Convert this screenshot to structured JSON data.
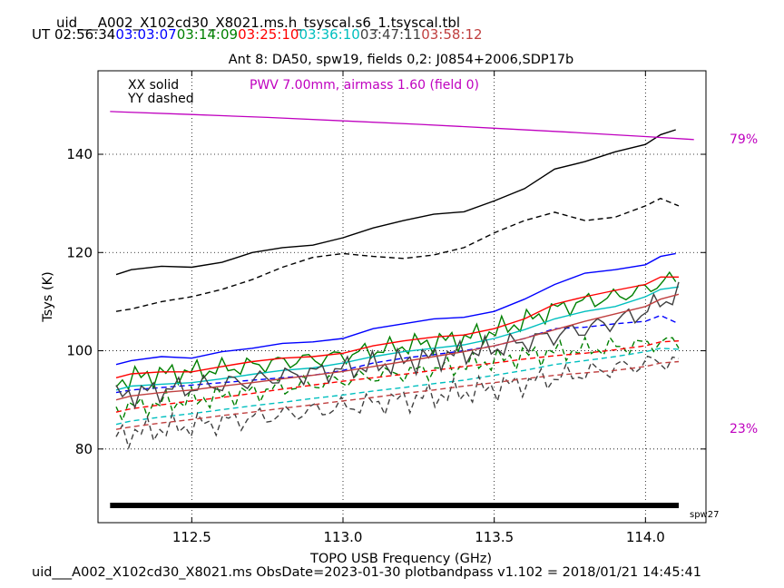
{
  "header": {
    "table_name": "uid___A002_X102cd30_X8021.ms.h_tsyscal.s6_1.tsyscal.tbl",
    "ut_prefix": "UT",
    "times": [
      {
        "label": "02:56:34",
        "color": "#000000"
      },
      {
        "label": "03:03:07",
        "color": "#0000ff"
      },
      {
        "label": "03:14:09",
        "color": "#008000"
      },
      {
        "label": "03:25:10",
        "color": "#ff0000"
      },
      {
        "label": "03:36:10",
        "color": "#00bfbf"
      },
      {
        "label": "03:47:11",
        "color": "#404040"
      },
      {
        "label": "03:58:12",
        "color": "#c04040"
      }
    ]
  },
  "footer": {
    "text": "uid___A002_X102cd30_X8021.ms  ObsDate=2023-01-30   plotbandpass v1.102 = 2018/01/21 14:45:41"
  },
  "chart_data": {
    "type": "line",
    "title": "Ant 8: DA50,  spw19,  fields 0,2: J0854+2006,SDP17b",
    "xlabel": "TOPO USB Frequency (GHz)",
    "ylabel": "Tsys (K)",
    "xlim": [
      112.19,
      114.2
    ],
    "ylim": [
      65,
      157
    ],
    "xticks": [
      112.5,
      113.0,
      113.5,
      114.0
    ],
    "xtick_labels": [
      "112.5",
      "113.0",
      "113.5",
      "114.0"
    ],
    "yticks": [
      80,
      100,
      120,
      140
    ],
    "ytick_labels": [
      "80",
      "100",
      "120",
      "140"
    ],
    "grid": true,
    "legend_notes": [
      "XX solid",
      "YY dashed"
    ],
    "pwv_annotation": {
      "text": "PWV 7.00mm, airmass 1.60 (field 0)",
      "color": "#bf00bf"
    },
    "atm_transmission": {
      "color": "#bf00bf",
      "scale_top_label": "79%",
      "scale_bottom_label": "23%",
      "x": [
        112.23,
        112.5,
        112.75,
        113.0,
        113.25,
        113.5,
        113.75,
        114.0,
        114.16
      ],
      "y": [
        148.7,
        148.1,
        147.5,
        146.8,
        146.1,
        145.3,
        144.5,
        143.6,
        143.0
      ]
    },
    "spw_bar": {
      "label": "spw27",
      "x_range": [
        112.23,
        114.11
      ],
      "y": 68.5,
      "color": "#000000"
    },
    "series": [
      {
        "color": "#000000",
        "dash": false,
        "noise": 0,
        "x": [
          112.25,
          112.3,
          112.4,
          112.5,
          112.6,
          112.7,
          112.8,
          112.9,
          113.0,
          113.1,
          113.2,
          113.3,
          113.4,
          113.5,
          113.6,
          113.7,
          113.8,
          113.9,
          114.0,
          114.05,
          114.1
        ],
        "y": [
          115.5,
          116.5,
          117.2,
          117.0,
          118.0,
          120.0,
          121.0,
          121.5,
          123.0,
          125.0,
          126.5,
          127.8,
          128.3,
          130.5,
          133.0,
          137.0,
          138.5,
          140.5,
          142.0,
          144.0,
          145.0
        ]
      },
      {
        "color": "#000000",
        "dash": true,
        "noise": 0,
        "x": [
          112.25,
          112.3,
          112.4,
          112.5,
          112.6,
          112.7,
          112.8,
          112.9,
          113.0,
          113.1,
          113.2,
          113.3,
          113.4,
          113.5,
          113.6,
          113.7,
          113.8,
          113.9,
          114.0,
          114.05,
          114.11
        ],
        "y": [
          108.0,
          108.5,
          110.0,
          111.0,
          112.5,
          114.5,
          117.0,
          119.0,
          119.8,
          119.2,
          118.8,
          119.5,
          121.0,
          124.0,
          126.5,
          128.2,
          126.5,
          127.2,
          129.5,
          131.0,
          129.5
        ]
      },
      {
        "color": "#0000ff",
        "dash": false,
        "noise": 0,
        "x": [
          112.25,
          112.3,
          112.4,
          112.5,
          112.6,
          112.7,
          112.8,
          112.9,
          113.0,
          113.1,
          113.2,
          113.3,
          113.4,
          113.5,
          113.6,
          113.7,
          113.8,
          113.9,
          114.0,
          114.05,
          114.1
        ],
        "y": [
          97.2,
          98.0,
          98.8,
          98.5,
          99.8,
          100.5,
          101.5,
          101.8,
          102.5,
          104.5,
          105.5,
          106.5,
          106.8,
          108.0,
          110.5,
          113.5,
          115.8,
          116.5,
          117.5,
          119.2,
          119.8
        ]
      },
      {
        "color": "#0000ff",
        "dash": true,
        "noise": 0,
        "x": [
          112.25,
          112.3,
          112.4,
          112.5,
          112.6,
          112.7,
          112.8,
          112.9,
          113.0,
          113.1,
          113.2,
          113.3,
          113.4,
          113.5,
          113.6,
          113.7,
          113.8,
          113.9,
          114.0,
          114.05,
          114.11
        ],
        "y": [
          91.5,
          92.0,
          92.5,
          93.0,
          93.5,
          94.0,
          94.5,
          95.0,
          96.0,
          97.5,
          98.5,
          99.2,
          100.0,
          101.0,
          102.5,
          104.5,
          104.8,
          105.5,
          106.0,
          107.2,
          105.5
        ]
      },
      {
        "color": "#008000",
        "dash": false,
        "noise": 1.2,
        "x": [
          112.25,
          112.3,
          112.4,
          112.5,
          112.6,
          112.7,
          112.8,
          112.9,
          113.0,
          113.1,
          113.2,
          113.3,
          113.4,
          113.5,
          113.6,
          113.7,
          113.8,
          113.9,
          114.0,
          114.05,
          114.1
        ],
        "y": [
          93.5,
          94.5,
          95.3,
          95.8,
          96.3,
          97.0,
          97.8,
          98.3,
          99.0,
          100.0,
          101.0,
          101.8,
          102.5,
          104.0,
          106.0,
          108.5,
          110.0,
          111.0,
          112.5,
          114.0,
          114.5
        ]
      },
      {
        "color": "#008000",
        "dash": true,
        "noise": 1.2,
        "x": [
          112.25,
          112.3,
          112.4,
          112.5,
          112.6,
          112.7,
          112.8,
          112.9,
          113.0,
          113.1,
          113.2,
          113.3,
          113.4,
          113.5,
          113.6,
          113.7,
          113.8,
          113.9,
          114.0,
          114.05,
          114.11
        ],
        "y": [
          88.0,
          88.5,
          89.3,
          90.0,
          90.8,
          91.5,
          92.5,
          93.2,
          94.0,
          94.8,
          95.5,
          96.2,
          97.0,
          98.0,
          99.0,
          99.8,
          100.3,
          100.8,
          101.3,
          101.8,
          101.5
        ]
      },
      {
        "color": "#ff0000",
        "dash": false,
        "noise": 0,
        "x": [
          112.25,
          112.3,
          112.4,
          112.5,
          112.6,
          112.7,
          112.8,
          112.9,
          113.0,
          113.1,
          113.2,
          113.3,
          113.4,
          113.5,
          113.6,
          113.7,
          113.8,
          113.9,
          114.0,
          114.05,
          114.11
        ],
        "y": [
          94.5,
          95.3,
          95.7,
          95.7,
          96.8,
          97.8,
          98.5,
          98.8,
          99.5,
          101.0,
          102.0,
          102.8,
          103.2,
          104.5,
          106.5,
          109.5,
          111.0,
          112.3,
          113.5,
          115.0,
          115.0
        ]
      },
      {
        "color": "#ff0000",
        "dash": true,
        "noise": 0,
        "x": [
          112.25,
          112.3,
          112.4,
          112.5,
          112.6,
          112.7,
          112.8,
          112.9,
          113.0,
          113.1,
          113.2,
          113.3,
          113.4,
          113.5,
          113.6,
          113.7,
          113.8,
          113.9,
          114.0,
          114.05,
          114.11
        ],
        "y": [
          87.5,
          88.2,
          89.0,
          89.8,
          90.5,
          91.3,
          92.2,
          93.0,
          93.8,
          94.5,
          95.2,
          96.0,
          96.8,
          97.5,
          98.3,
          99.0,
          99.5,
          100.2,
          101.0,
          101.8,
          102.0
        ]
      },
      {
        "color": "#00bfbf",
        "dash": false,
        "noise": 0,
        "x": [
          112.25,
          112.3,
          112.4,
          112.5,
          112.6,
          112.7,
          112.8,
          112.9,
          113.0,
          113.1,
          113.2,
          113.3,
          113.4,
          113.5,
          113.6,
          113.7,
          113.8,
          113.9,
          114.0,
          114.05,
          114.11
        ],
        "y": [
          92.0,
          92.8,
          93.2,
          93.5,
          94.3,
          95.2,
          96.0,
          96.5,
          97.5,
          98.8,
          99.8,
          100.5,
          101.2,
          102.5,
          104.3,
          106.5,
          108.0,
          109.0,
          111.0,
          112.5,
          113.0
        ]
      },
      {
        "color": "#00bfbf",
        "dash": true,
        "noise": 0,
        "x": [
          112.25,
          112.3,
          112.4,
          112.5,
          112.6,
          112.7,
          112.8,
          112.9,
          113.0,
          113.1,
          113.2,
          113.3,
          113.4,
          113.5,
          113.6,
          113.7,
          113.8,
          113.9,
          114.0,
          114.05,
          114.11
        ],
        "y": [
          85.0,
          85.7,
          86.5,
          87.2,
          88.0,
          88.8,
          89.5,
          90.3,
          91.0,
          91.8,
          92.5,
          93.3,
          94.0,
          95.0,
          96.0,
          97.2,
          98.0,
          98.8,
          99.8,
          100.5,
          100.3
        ]
      },
      {
        "color": "#404040",
        "dash": false,
        "noise": 1.4,
        "x": [
          112.25,
          112.3,
          112.4,
          112.5,
          112.6,
          112.7,
          112.8,
          112.9,
          113.0,
          113.1,
          113.2,
          113.3,
          113.4,
          113.5,
          113.6,
          113.7,
          113.8,
          113.9,
          114.0,
          114.05,
          114.11
        ],
        "y": [
          90.5,
          91.2,
          92.0,
          92.5,
          93.2,
          94.0,
          94.8,
          95.5,
          96.3,
          97.0,
          97.8,
          98.7,
          99.5,
          100.5,
          101.8,
          103.2,
          104.5,
          106.0,
          108.0,
          110.0,
          111.5
        ]
      },
      {
        "color": "#404040",
        "dash": true,
        "noise": 1.4,
        "x": [
          112.25,
          112.3,
          112.4,
          112.5,
          112.6,
          112.7,
          112.8,
          112.9,
          113.0,
          113.1,
          113.2,
          113.3,
          113.4,
          113.5,
          113.6,
          113.7,
          113.8,
          113.9,
          114.0,
          114.05,
          114.11
        ],
        "y": [
          82.5,
          83.3,
          84.0,
          84.8,
          85.5,
          86.3,
          87.0,
          87.8,
          88.5,
          89.3,
          90.0,
          90.8,
          91.5,
          92.5,
          93.5,
          94.5,
          95.5,
          96.5,
          97.3,
          98.0,
          97.5
        ]
      },
      {
        "color": "#c04040",
        "dash": false,
        "noise": 0,
        "x": [
          112.25,
          112.3,
          112.4,
          112.5,
          112.6,
          112.7,
          112.8,
          112.9,
          113.0,
          113.1,
          113.2,
          113.3,
          113.4,
          113.5,
          113.6,
          113.7,
          113.8,
          113.9,
          114.0,
          114.05,
          114.11
        ],
        "y": [
          90.0,
          90.8,
          91.5,
          92.0,
          92.8,
          93.5,
          94.3,
          95.0,
          95.8,
          96.8,
          97.8,
          98.8,
          99.8,
          101.0,
          102.5,
          104.3,
          106.0,
          107.5,
          109.0,
          110.5,
          111.5
        ]
      },
      {
        "color": "#c04040",
        "dash": true,
        "noise": 0,
        "x": [
          112.25,
          112.3,
          112.4,
          112.5,
          112.6,
          112.7,
          112.8,
          112.9,
          113.0,
          113.1,
          113.2,
          113.3,
          113.4,
          113.5,
          113.6,
          113.7,
          113.8,
          113.9,
          114.0,
          114.05,
          114.11
        ],
        "y": [
          84.0,
          84.5,
          85.3,
          86.0,
          86.8,
          87.5,
          88.3,
          89.0,
          89.8,
          90.5,
          91.3,
          92.0,
          92.8,
          93.5,
          94.3,
          95.0,
          95.5,
          96.0,
          96.8,
          97.5,
          97.8
        ]
      }
    ]
  }
}
